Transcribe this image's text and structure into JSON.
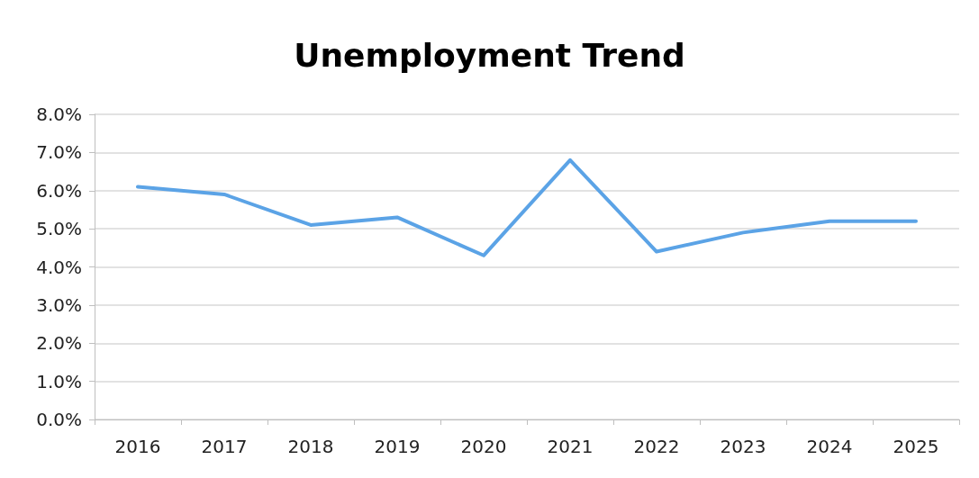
{
  "chart_data": {
    "type": "line",
    "title": "Unemployment Trend",
    "categories": [
      "2016",
      "2017",
      "2018",
      "2019",
      "2020",
      "2021",
      "2022",
      "2023",
      "2024",
      "2025"
    ],
    "series": [
      {
        "color": "#5ba3e6",
        "values": [
          6.1,
          5.9,
          5.1,
          5.3,
          4.3,
          6.8,
          4.4,
          4.9,
          5.2,
          5.2
        ]
      }
    ],
    "ylim": [
      0,
      8
    ],
    "yticks": [
      {
        "value": 0,
        "label": "0.0%"
      },
      {
        "value": 1,
        "label": "1.0%"
      },
      {
        "value": 2,
        "label": "2.0%"
      },
      {
        "value": 3,
        "label": "3.0%"
      },
      {
        "value": 4,
        "label": "4.0%"
      },
      {
        "value": 5,
        "label": "5.0%"
      },
      {
        "value": 6,
        "label": "6.0%"
      },
      {
        "value": 7,
        "label": "7.0%"
      },
      {
        "value": 8,
        "label": "8.0%"
      }
    ],
    "grid": "y",
    "marker": "none",
    "line_style": "solid"
  }
}
